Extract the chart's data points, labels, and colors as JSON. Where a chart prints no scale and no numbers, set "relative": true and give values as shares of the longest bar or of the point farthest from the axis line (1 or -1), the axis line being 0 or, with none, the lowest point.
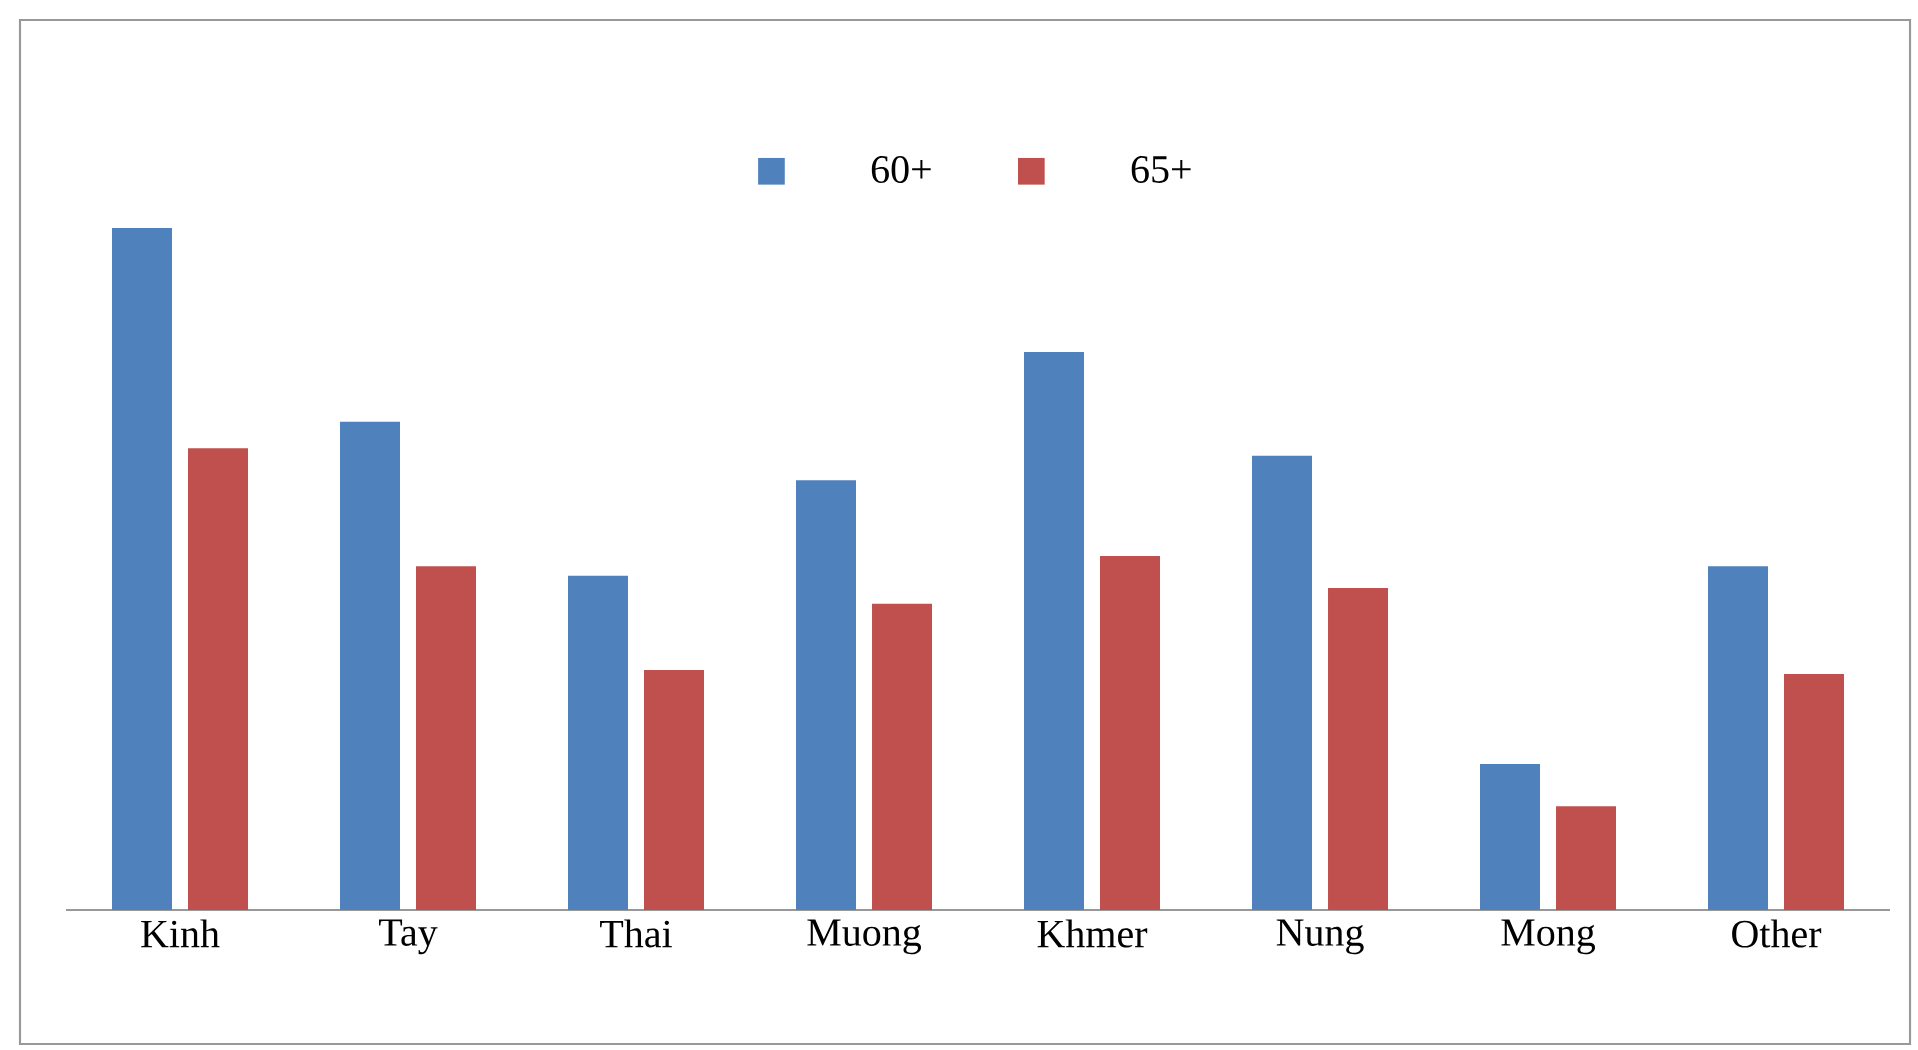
{
  "chart_data": {
    "type": "bar",
    "relative": true,
    "legend": "top",
    "categories": [
      "Kinh",
      "Tay",
      "Thai",
      "Muong",
      "Khmer",
      "Nung",
      "Mong",
      "Other"
    ],
    "series": [
      {
        "name": "60+",
        "color": "#4f81bd",
        "values": [
          1.0,
          0.716,
          0.49,
          0.63,
          0.818,
          0.666,
          0.214,
          0.504
        ]
      },
      {
        "name": "65+",
        "color": "#c0504d",
        "values": [
          0.677,
          0.504,
          0.352,
          0.449,
          0.519,
          0.472,
          0.152,
          0.346
        ]
      }
    ]
  }
}
